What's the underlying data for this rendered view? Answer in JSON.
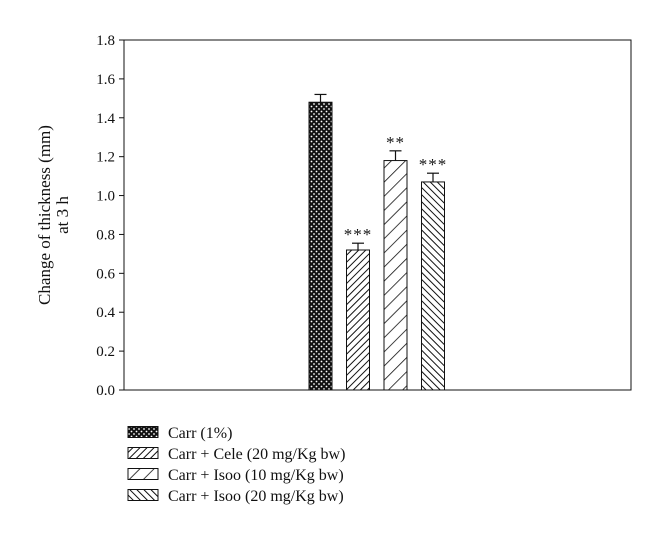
{
  "chart_data": {
    "type": "bar",
    "title": "",
    "xlabel": "",
    "ylabel": [
      "Change of thickness (mm)",
      "at 3 h"
    ],
    "ylim": [
      0,
      1.8
    ],
    "yticks": [
      "0.0",
      "0.2",
      "0.4",
      "0.6",
      "0.8",
      "1.0",
      "1.2",
      "1.4",
      "1.6",
      "1.8"
    ],
    "grid": false,
    "legend_position": "bottom-left",
    "series": [
      {
        "name": "Carr (1%)",
        "value": 1.48,
        "error": 0.04,
        "annotation": "",
        "pattern": "dots"
      },
      {
        "name": "Carr + Cele (20 mg/Kg bw)",
        "value": 0.72,
        "error": 0.035,
        "annotation": "***",
        "pattern": "diag-dense"
      },
      {
        "name": "Carr + Isoo (10 mg/Kg bw)",
        "value": 1.18,
        "error": 0.05,
        "annotation": "**",
        "pattern": "diag-sparse"
      },
      {
        "name": "Carr + Isoo (20 mg/Kg bw)",
        "value": 1.07,
        "error": 0.045,
        "annotation": "***",
        "pattern": "backdiag-dense"
      }
    ]
  },
  "colors": {
    "ink": "#111111",
    "background": "#ffffff"
  }
}
